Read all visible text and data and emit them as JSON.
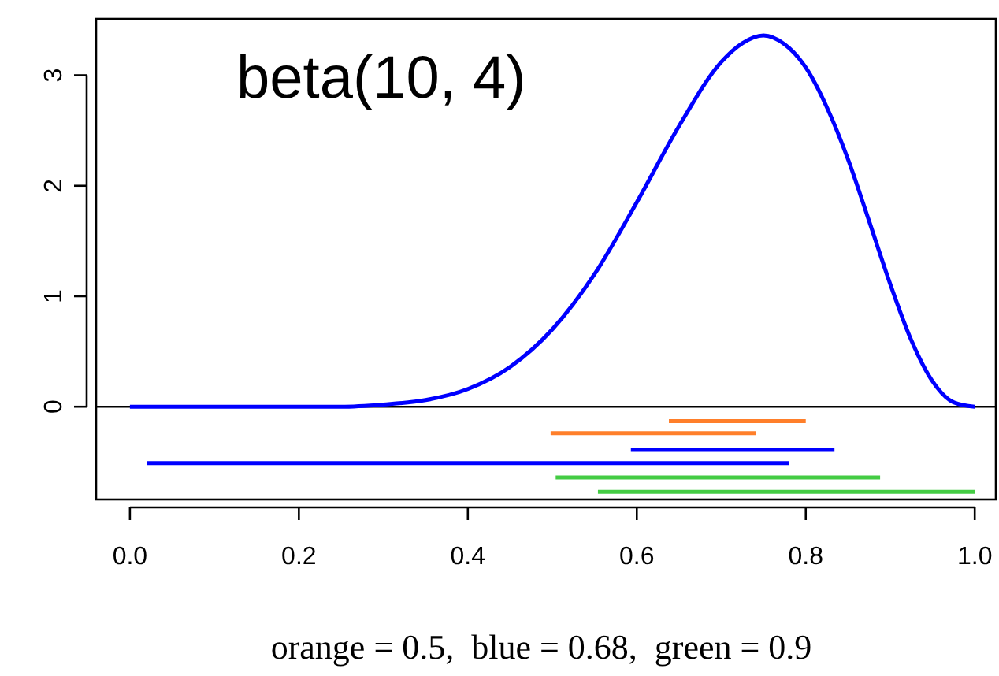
{
  "chart_data": {
    "type": "line",
    "title": "beta(10, 4)",
    "xlabel": "orange = 0.5,  blue = 0.68,  green = 0.9",
    "xlim": [
      -0.04,
      1.025
    ],
    "ylim": [
      -0.84,
      3.51
    ],
    "xticks": [
      {
        "value": 0,
        "label": "0.0"
      },
      0.2,
      0.4,
      0.6,
      0.8,
      {
        "value": 1,
        "label": "1.0"
      }
    ],
    "yticks": [
      0,
      1,
      2,
      3
    ],
    "grid": false,
    "line_style": "solid",
    "ref_lines": [
      {
        "axis": "y",
        "value": 0,
        "color": "#000000"
      }
    ],
    "series": [
      {
        "color": "#0000ff",
        "x": [
          0,
          0.1,
          0.2,
          0.25,
          0.3,
          0.35,
          0.4,
          0.45,
          0.5,
          0.55,
          0.6,
          0.65,
          0.7,
          0.725,
          0.75,
          0.775,
          0.8,
          0.825,
          0.85,
          0.875,
          0.9,
          0.925,
          0.95,
          0.975,
          1
        ],
        "values": [
          0,
          0,
          0,
          0,
          0.02,
          0.06,
          0.16,
          0.36,
          0.7,
          1.2,
          1.85,
          2.54,
          3.12,
          3.29,
          3.36,
          3.28,
          3.07,
          2.71,
          2.24,
          1.68,
          1.11,
          0.6,
          0.23,
          0.04,
          0
        ]
      },
      {
        "color": "#ff7f2a",
        "x": [
          0.638,
          0.8
        ],
        "values": [
          -0.13,
          -0.13
        ]
      },
      {
        "color": "#ff7f2a",
        "x": [
          0.498,
          0.741
        ],
        "values": [
          -0.24,
          -0.24
        ]
      },
      {
        "color": "#0000ff",
        "x": [
          0.593,
          0.834
        ],
        "values": [
          -0.39,
          -0.39
        ]
      },
      {
        "color": "#0000ff",
        "x": [
          0.02,
          0.78
        ],
        "values": [
          -0.51,
          -0.51
        ]
      },
      {
        "color": "#44cc44",
        "x": [
          0.504,
          0.888
        ],
        "values": [
          -0.64,
          -0.64
        ]
      },
      {
        "color": "#44cc44",
        "x": [
          0.554,
          1.0
        ],
        "values": [
          -0.77,
          -0.77
        ]
      }
    ]
  }
}
